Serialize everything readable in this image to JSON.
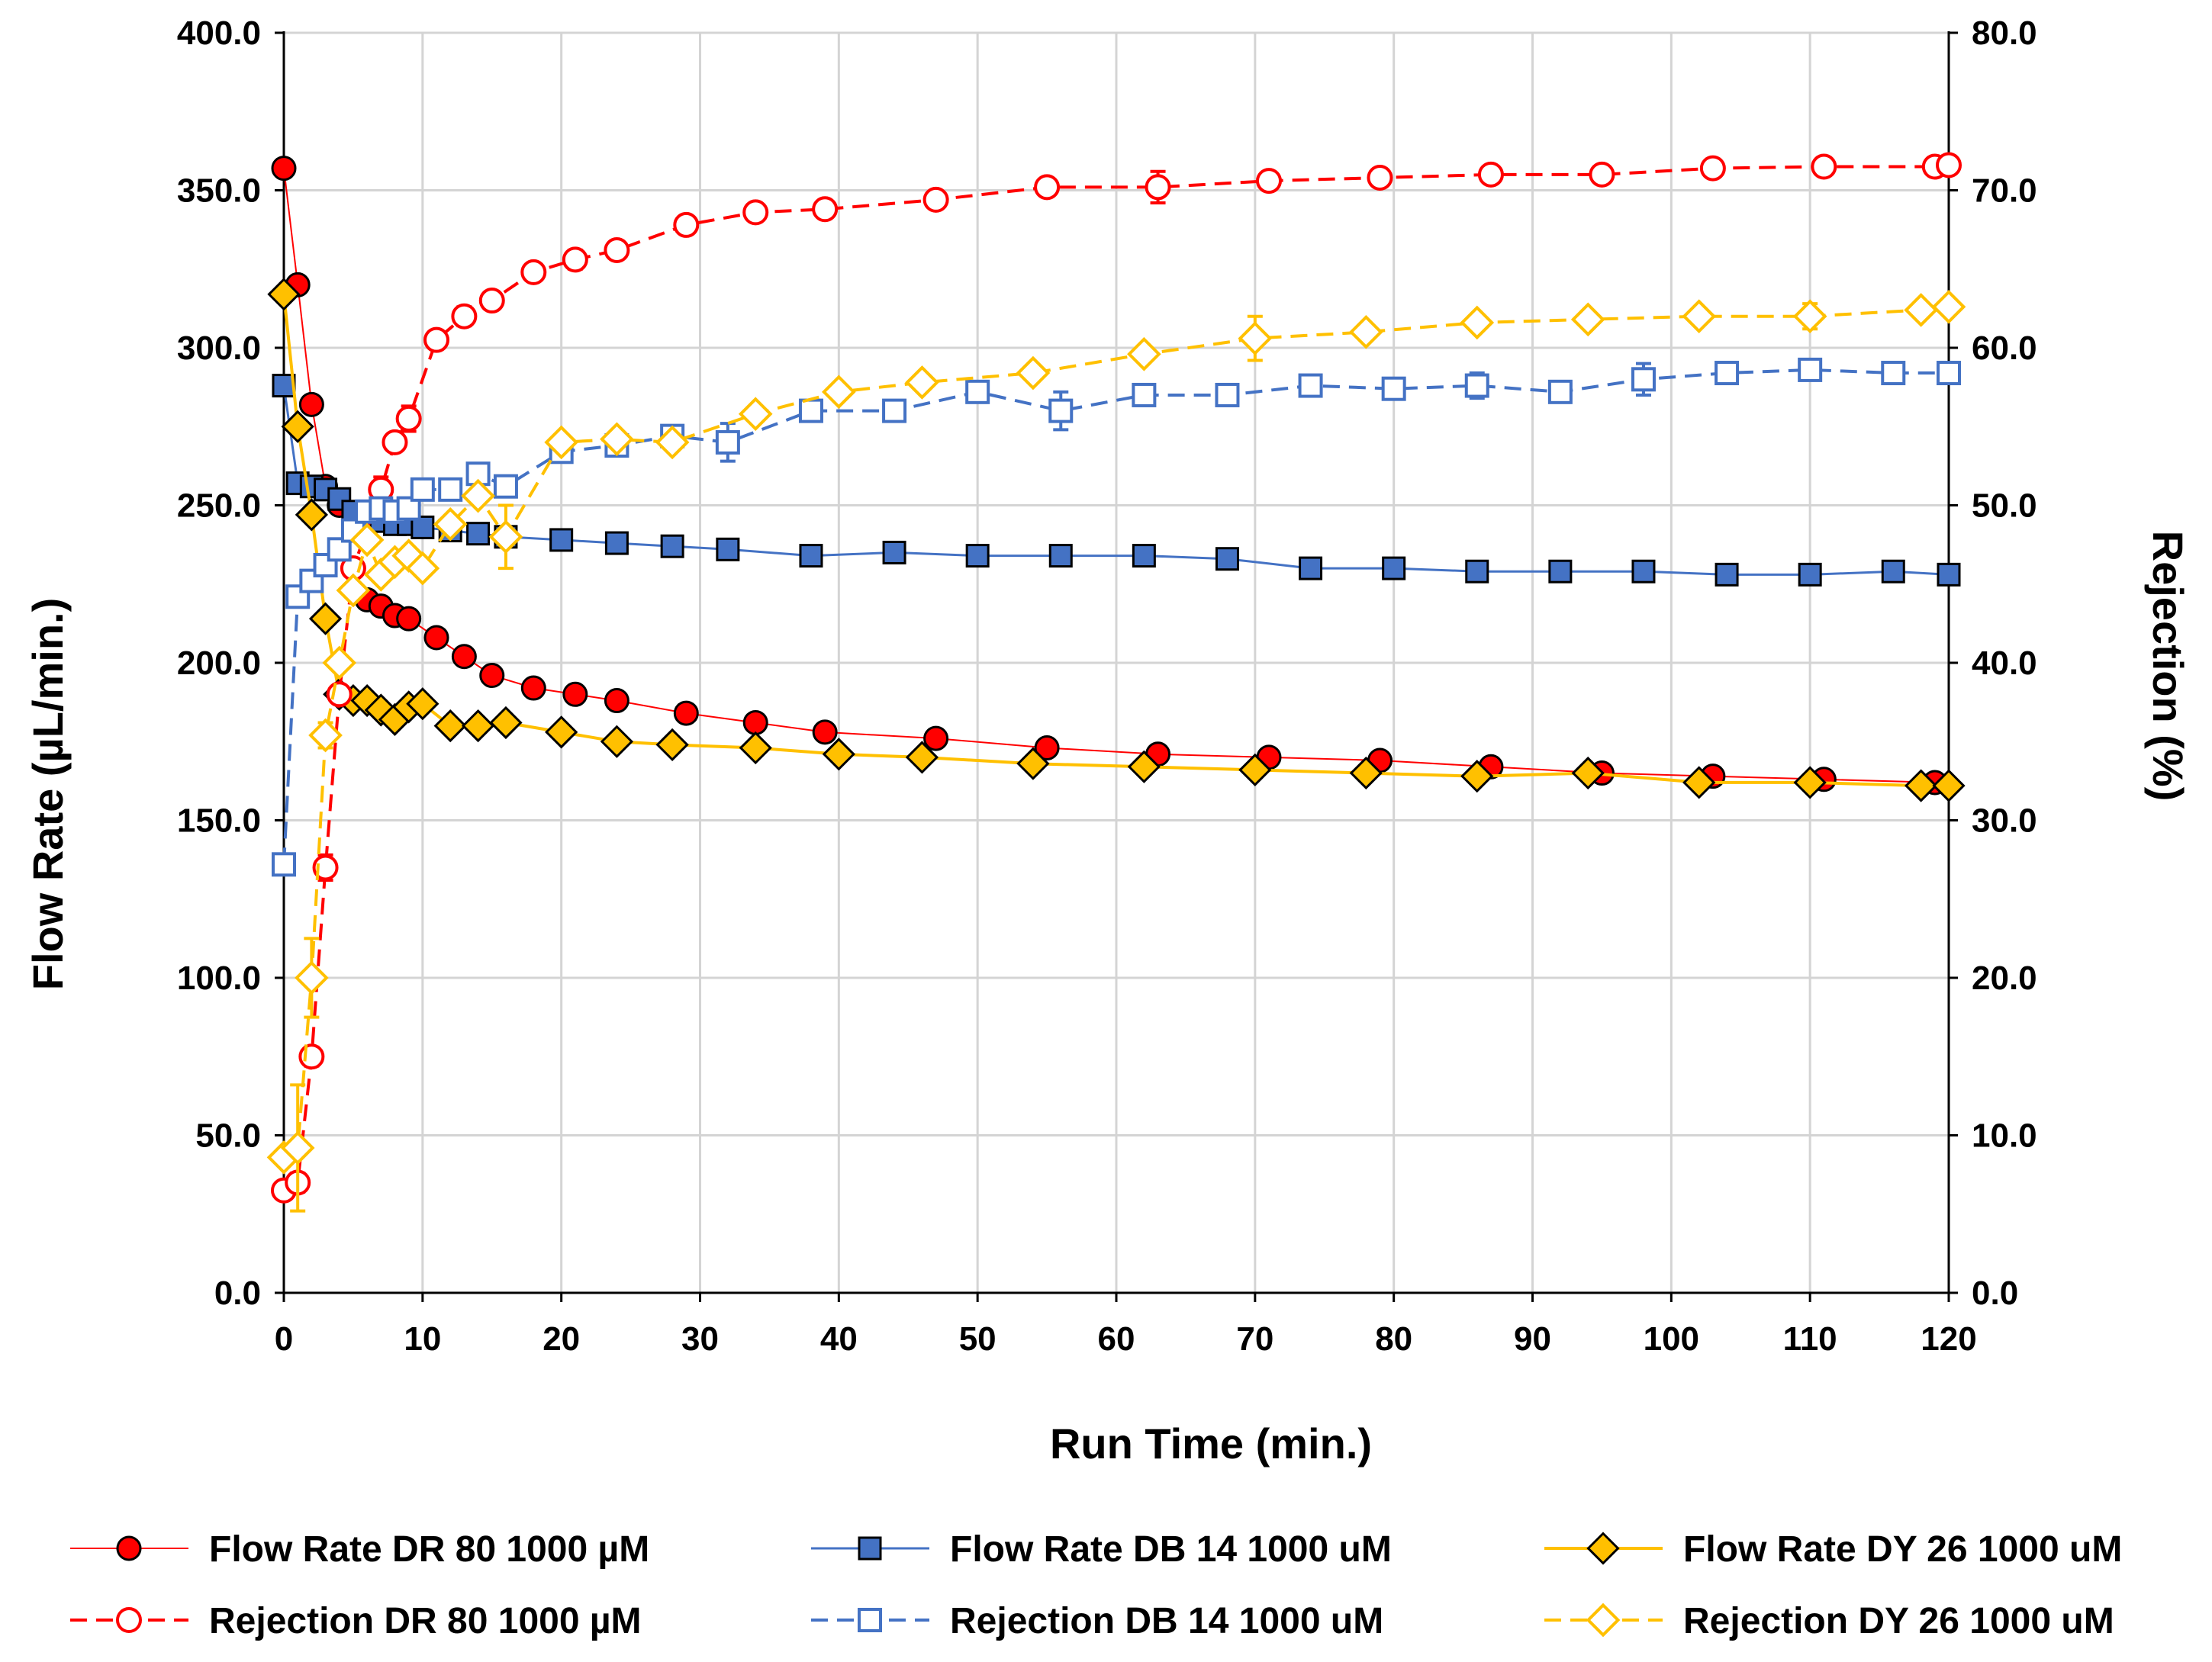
{
  "chart_data": {
    "type": "line",
    "title": "",
    "xlabel": "Run Time (min.)",
    "ylabel_left": "Flow Rate (µL/min.)",
    "ylabel_right": "Rejection (%)",
    "xlim": [
      0,
      120
    ],
    "ylim_left": [
      0,
      400
    ],
    "ylim_right": [
      0,
      80
    ],
    "x_ticks": [
      "0",
      "10",
      "20",
      "30",
      "40",
      "50",
      "60",
      "70",
      "80",
      "90",
      "100",
      "110",
      "120"
    ],
    "y_left_ticks": [
      "0.0",
      "50.0",
      "100.0",
      "150.0",
      "200.0",
      "250.0",
      "300.0",
      "350.0",
      "400.0"
    ],
    "y_right_ticks": [
      "0.0",
      "10.0",
      "20.0",
      "30.0",
      "40.0",
      "50.0",
      "60.0",
      "70.0",
      "80.0"
    ],
    "grid": true,
    "legend_position": "bottom",
    "series": [
      {
        "name": "Flow Rate DR 80 1000 µM",
        "axis": "left",
        "color": "#ff0000",
        "marker": "circle",
        "filled": true,
        "dashed": false,
        "line_width": 2,
        "x": [
          0,
          1,
          2,
          3,
          4,
          5,
          6,
          7,
          8,
          9,
          11,
          13,
          15,
          18,
          21,
          24,
          29,
          34,
          39,
          47,
          55,
          63,
          71,
          79,
          87,
          95,
          103,
          111,
          119
        ],
        "y": [
          357,
          320,
          282,
          256,
          250,
          230,
          220,
          218,
          215,
          214,
          208,
          202,
          196,
          192,
          190,
          188,
          184,
          181,
          178,
          176,
          173,
          171,
          170,
          169,
          167,
          165,
          164,
          163,
          162
        ]
      },
      {
        "name": "Flow Rate DB 14 1000 uM",
        "axis": "left",
        "color": "#4472c4",
        "marker": "square",
        "filled": true,
        "dashed": false,
        "line_width": 3,
        "x": [
          0,
          1,
          2,
          3,
          4,
          5,
          6,
          7,
          8,
          9,
          10,
          12,
          14,
          16,
          20,
          24,
          28,
          32,
          38,
          44,
          50,
          56,
          62,
          68,
          74,
          80,
          86,
          92,
          98,
          104,
          110,
          116,
          120
        ],
        "y": [
          288,
          257,
          256,
          255,
          252,
          248,
          246,
          245,
          244,
          244,
          243,
          242,
          241,
          240,
          239,
          238,
          237,
          236,
          234,
          235,
          234,
          234,
          234,
          233,
          230,
          230,
          229,
          229,
          229,
          228,
          228,
          229,
          228
        ]
      },
      {
        "name": "Flow Rate DY 26 1000 uM",
        "axis": "left",
        "color": "#ffc000",
        "marker": "diamond",
        "filled": true,
        "dashed": false,
        "line_width": 4,
        "x": [
          0,
          1,
          2,
          3,
          4,
          5,
          6,
          7,
          8,
          9,
          10,
          12,
          14,
          16,
          20,
          24,
          28,
          34,
          40,
          46,
          54,
          62,
          70,
          78,
          86,
          94,
          102,
          110,
          118,
          120
        ],
        "y": [
          317,
          275,
          247,
          214,
          190,
          188,
          188,
          185,
          182,
          186,
          187,
          180,
          180,
          181,
          178,
          175,
          174,
          173,
          171,
          170,
          168,
          167,
          166,
          165,
          164,
          165,
          162,
          162,
          161,
          161
        ]
      },
      {
        "name": "Rejection DR 80 1000 µM",
        "axis": "right",
        "color": "#ff0000",
        "marker": "circle",
        "filled": false,
        "dashed": true,
        "line_width": 4,
        "x": [
          0,
          1,
          2,
          3,
          4,
          5,
          7,
          8,
          9,
          11,
          13,
          15,
          18,
          21,
          24,
          29,
          34,
          39,
          47,
          55,
          63,
          71,
          79,
          87,
          95,
          103,
          111,
          119,
          120
        ],
        "y": [
          6.5,
          7,
          15,
          27,
          38,
          46,
          51,
          54,
          55.5,
          60.5,
          62,
          63,
          64.8,
          65.6,
          66.2,
          67.8,
          68.6,
          68.8,
          69.4,
          70.2,
          70.2,
          70.6,
          70.8,
          71,
          71,
          71.4,
          71.5,
          71.5,
          71.6
        ],
        "error": [
          0,
          0.6,
          0.6,
          0.8,
          0,
          0,
          0.8,
          0,
          0.8,
          0,
          0.6,
          0,
          0,
          0.6,
          0,
          0,
          0,
          0,
          0,
          0,
          1,
          0,
          0,
          0,
          0,
          0,
          0,
          0,
          0
        ]
      },
      {
        "name": "Rejection DB 14 1000 uM",
        "axis": "right",
        "color": "#4472c4",
        "marker": "square",
        "filled": false,
        "dashed": true,
        "line_width": 4,
        "x": [
          0,
          1,
          2,
          3,
          4,
          5,
          6,
          7,
          8,
          9,
          10,
          12,
          14,
          16,
          20,
          24,
          28,
          32,
          38,
          44,
          50,
          56,
          62,
          68,
          74,
          80,
          86,
          92,
          98,
          104,
          110,
          116,
          120
        ],
        "y": [
          27.2,
          44.2,
          45.2,
          46.2,
          47.2,
          48.4,
          49.6,
          49.8,
          49.6,
          49.8,
          51,
          51,
          52,
          51.2,
          53.4,
          53.8,
          54.4,
          54,
          56,
          56,
          57.2,
          56,
          57,
          57,
          57.6,
          57.4,
          57.6,
          57.2,
          58,
          58.4,
          58.6,
          58.4,
          58.4
        ],
        "error": [
          0,
          0,
          0,
          0,
          0,
          0,
          0,
          0,
          0,
          0,
          0,
          0,
          0,
          0,
          0,
          0,
          0,
          1.2,
          0,
          0,
          0,
          1.2,
          0,
          0,
          0,
          0,
          0.8,
          0.6,
          1,
          0,
          0,
          0,
          0
        ]
      },
      {
        "name": "Rejection DY 26 1000 uM",
        "axis": "right",
        "color": "#ffc000",
        "marker": "diamond",
        "filled": false,
        "dashed": true,
        "line_width": 4,
        "x": [
          0,
          1,
          2,
          3,
          4,
          5,
          6,
          7,
          8,
          9,
          10,
          12,
          14,
          16,
          20,
          24,
          28,
          34,
          40,
          46,
          54,
          62,
          70,
          78,
          86,
          94,
          102,
          110,
          118,
          120
        ],
        "y": [
          8.6,
          9.2,
          20,
          35.4,
          40,
          44.6,
          47.8,
          45.6,
          46.4,
          46.8,
          46,
          48.8,
          50.6,
          48,
          54,
          54.2,
          54,
          55.8,
          57.2,
          57.8,
          58.4,
          59.6,
          60.6,
          61,
          61.6,
          61.8,
          62,
          62,
          62.4,
          62.6
        ],
        "error": [
          0,
          4,
          2.5,
          0.8,
          0,
          0,
          0,
          0,
          0,
          0,
          0,
          0,
          0,
          2,
          0,
          0,
          0,
          0,
          0,
          0,
          0,
          0,
          1.4,
          0,
          0,
          0,
          0,
          0.8,
          0,
          0
        ]
      }
    ]
  }
}
